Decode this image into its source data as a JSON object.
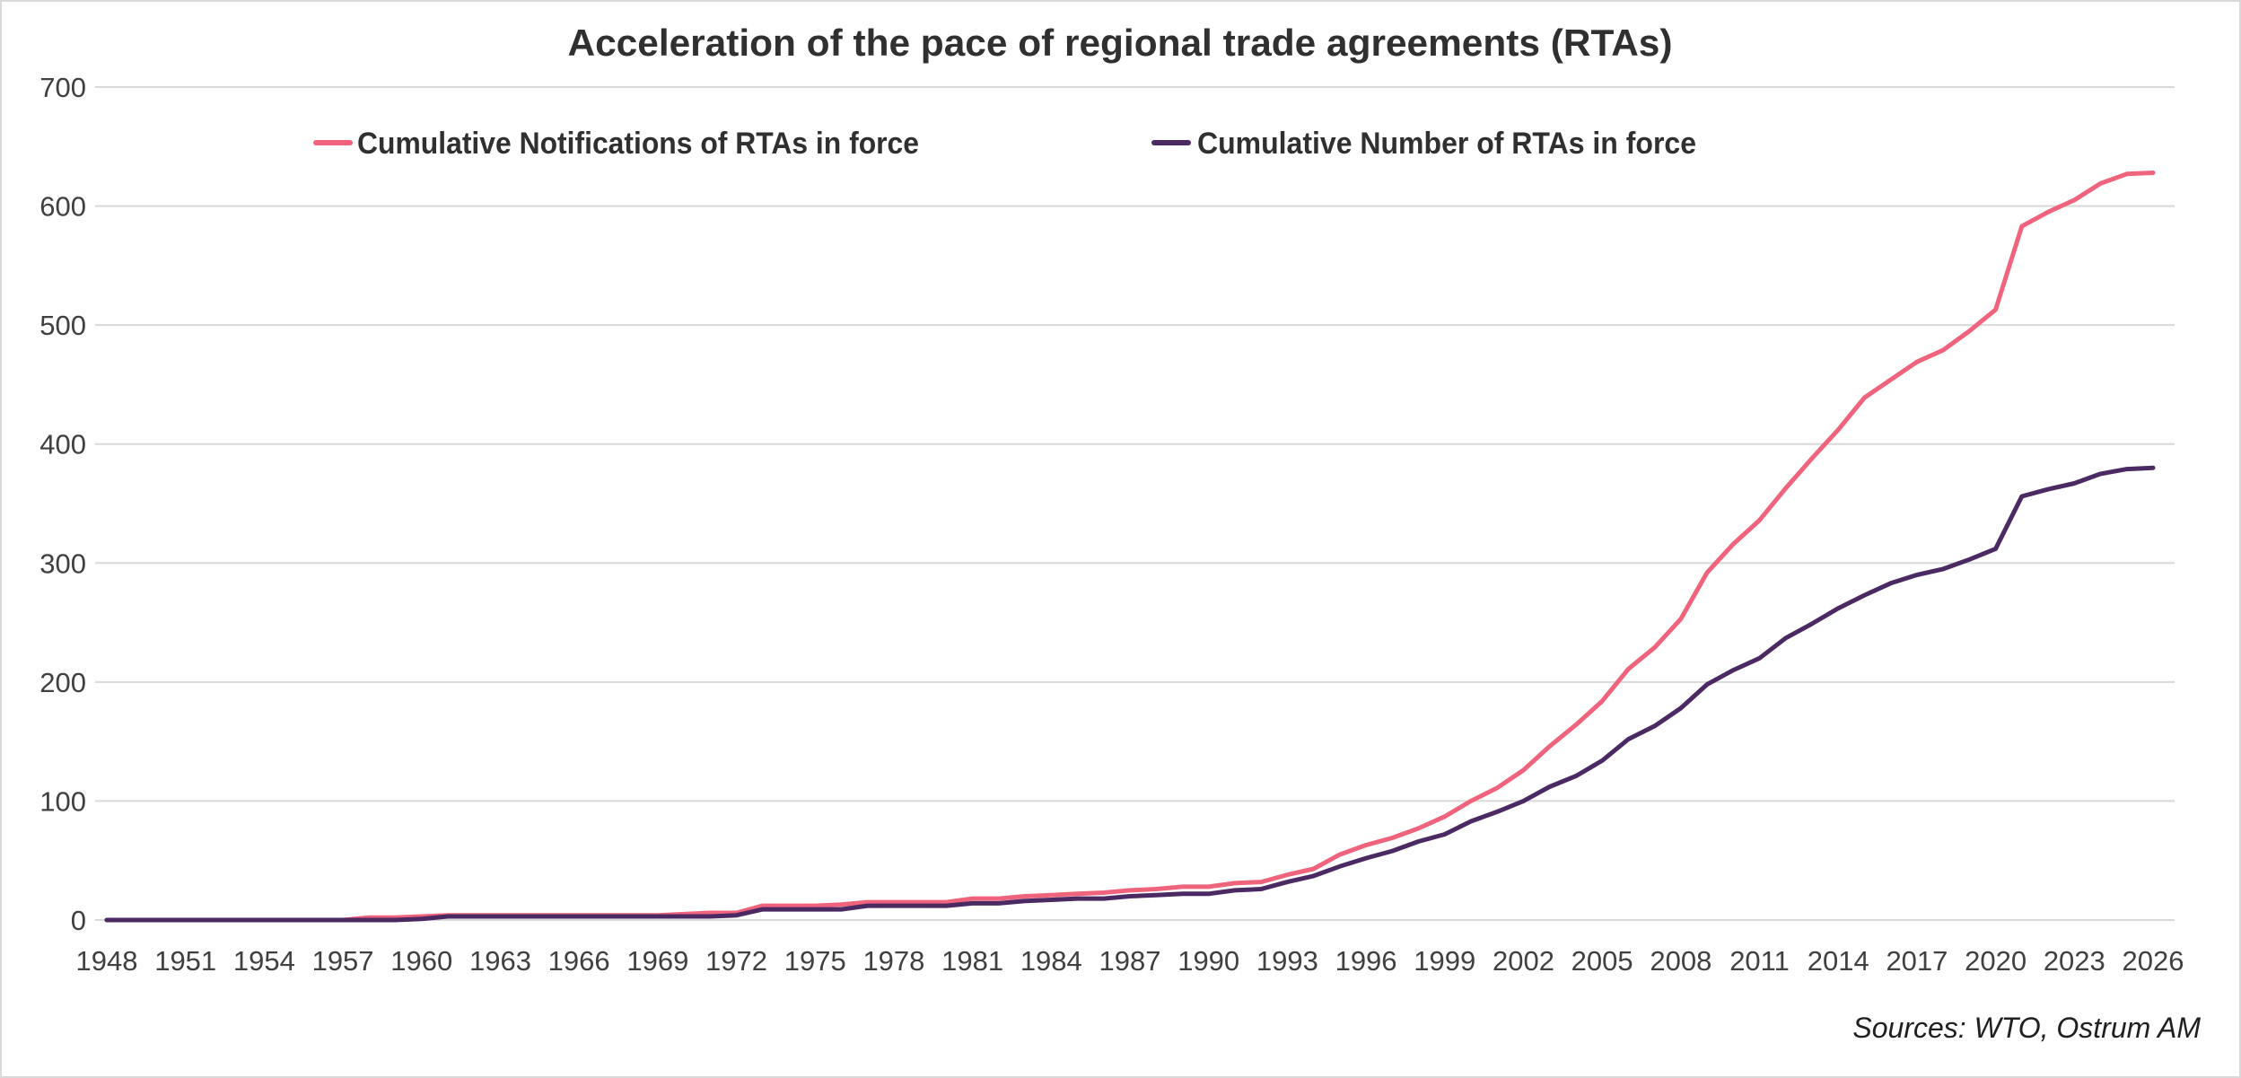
{
  "chart_data": {
    "type": "line",
    "title": "Acceleration of the pace of regional trade agreements (RTAs)",
    "source": "Sources: WTO, Ostrum AM",
    "xlabel": "",
    "ylabel": "",
    "xlim": [
      1948,
      2026
    ],
    "ylim": [
      0,
      700
    ],
    "y_ticks": [
      0,
      100,
      200,
      300,
      400,
      500,
      600,
      700
    ],
    "x_ticks": [
      1948,
      1951,
      1954,
      1957,
      1960,
      1963,
      1966,
      1969,
      1972,
      1975,
      1978,
      1981,
      1984,
      1987,
      1990,
      1993,
      1996,
      1999,
      2002,
      2005,
      2008,
      2011,
      2014,
      2017,
      2020,
      2023,
      2026
    ],
    "grid": "horizontal",
    "legend_position": "top",
    "x": [
      1948,
      1949,
      1950,
      1951,
      1952,
      1953,
      1954,
      1955,
      1956,
      1957,
      1958,
      1959,
      1960,
      1961,
      1962,
      1963,
      1964,
      1965,
      1966,
      1967,
      1968,
      1969,
      1970,
      1971,
      1972,
      1973,
      1974,
      1975,
      1976,
      1977,
      1978,
      1979,
      1980,
      1981,
      1982,
      1983,
      1984,
      1985,
      1986,
      1987,
      1988,
      1989,
      1990,
      1991,
      1992,
      1993,
      1994,
      1995,
      1996,
      1997,
      1998,
      1999,
      2000,
      2001,
      2002,
      2003,
      2004,
      2005,
      2006,
      2007,
      2008,
      2009,
      2010,
      2011,
      2012,
      2013,
      2014,
      2015,
      2016,
      2017,
      2018,
      2019,
      2020,
      2021,
      2022,
      2023,
      2024,
      2025,
      2026
    ],
    "series": [
      {
        "name": "Cumulative Notifications of RTAs in force",
        "color": "#f0637c",
        "values": [
          0,
          0,
          0,
          0,
          0,
          0,
          0,
          0,
          0,
          0,
          2,
          2,
          3,
          4,
          4,
          4,
          4,
          4,
          4,
          4,
          4,
          4,
          5,
          6,
          6,
          12,
          12,
          12,
          13,
          15,
          15,
          15,
          15,
          18,
          18,
          20,
          21,
          22,
          23,
          25,
          26,
          28,
          28,
          31,
          32,
          38,
          43,
          55,
          63,
          69,
          77,
          87,
          100,
          111,
          126,
          146,
          164,
          184,
          211,
          229,
          253,
          292,
          316,
          336,
          363,
          388,
          412,
          439,
          454,
          469,
          479,
          495,
          513,
          583,
          595,
          605,
          619,
          627,
          628
        ]
      },
      {
        "name": "Cumulative Number of RTAs in force",
        "color": "#4b2a63",
        "values": [
          0,
          0,
          0,
          0,
          0,
          0,
          0,
          0,
          0,
          0,
          0,
          0,
          1,
          3,
          3,
          3,
          3,
          3,
          3,
          3,
          3,
          3,
          3,
          3,
          4,
          9,
          9,
          9,
          9,
          12,
          12,
          12,
          12,
          14,
          14,
          16,
          17,
          18,
          18,
          20,
          21,
          22,
          22,
          25,
          26,
          32,
          37,
          45,
          52,
          58,
          66,
          72,
          83,
          91,
          100,
          112,
          121,
          134,
          152,
          163,
          178,
          198,
          210,
          220,
          237,
          249,
          262,
          273,
          283,
          290,
          295,
          303,
          312,
          356,
          362,
          367,
          375,
          379,
          380
        ]
      }
    ]
  }
}
